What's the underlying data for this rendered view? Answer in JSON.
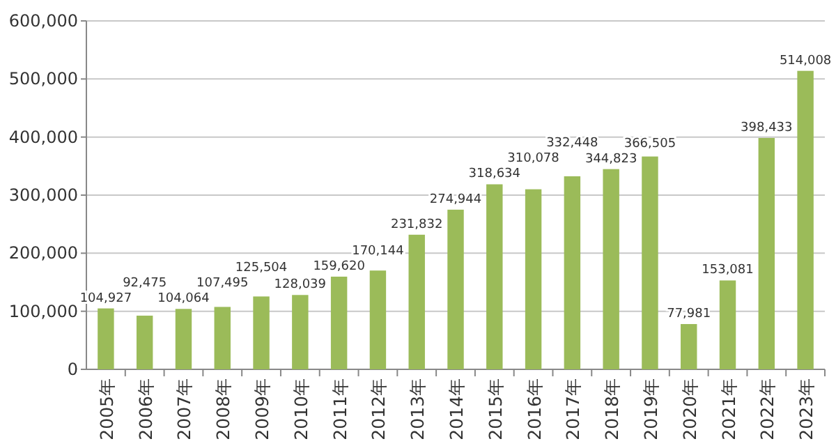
{
  "chart_data": {
    "type": "bar",
    "categories": [
      "2005年",
      "2006年",
      "2007年",
      "2008年",
      "2009年",
      "2010年",
      "2011年",
      "2012年",
      "2013年",
      "2014年",
      "2015年",
      "2016年",
      "2017年",
      "2018年",
      "2019年",
      "2020年",
      "2021年",
      "2022年",
      "2023年"
    ],
    "values": [
      104927,
      92475,
      104064,
      107495,
      125504,
      128039,
      159620,
      170144,
      231832,
      274944,
      318634,
      310078,
      332448,
      344823,
      366505,
      77981,
      153081,
      398433,
      514008
    ],
    "color": "#9bbb59",
    "ylim": [
      0,
      600000
    ],
    "yticks": [
      {
        "value": 0,
        "label": "0"
      },
      {
        "value": 100000,
        "label": "100,000"
      },
      {
        "value": 200000,
        "label": "200,000"
      },
      {
        "value": 300000,
        "label": "300,000"
      },
      {
        "value": 400000,
        "label": "400,000"
      },
      {
        "value": 500000,
        "label": "500,000"
      },
      {
        "value": 600000,
        "label": "600,000"
      }
    ],
    "value_labels": [
      "104,927",
      "92,475",
      "104,064",
      "107,495",
      "125,504",
      "128,039",
      "159,620",
      "170,144",
      "231,832",
      "274,944",
      "318,634",
      "310,078",
      "332,448",
      "344,823",
      "366,505",
      "77,981",
      "153,081",
      "398,433",
      "514,008"
    ],
    "grid": "y"
  }
}
